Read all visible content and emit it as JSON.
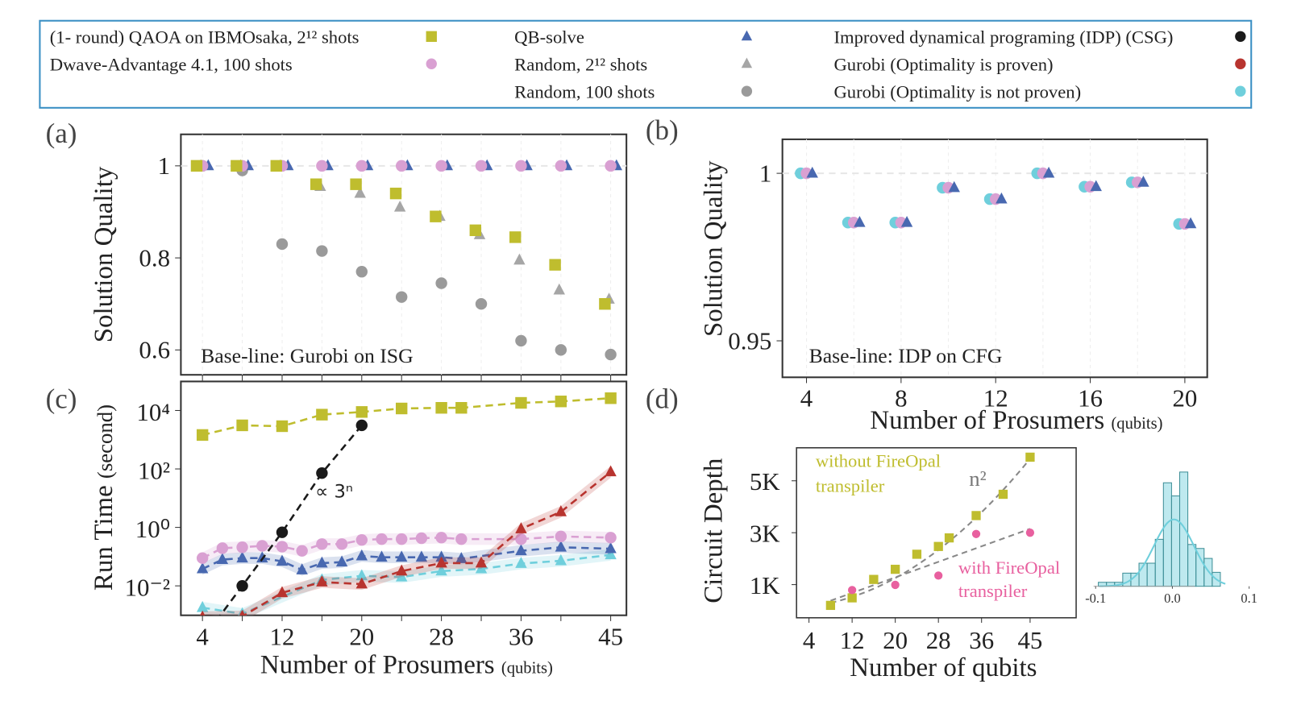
{
  "legend": {
    "border_color": "#3a8fc4",
    "items": [
      {
        "label": "(1- round) QAOA on IBMOsaka, 2¹² shots",
        "marker": "square",
        "color": "#bfbd2e"
      },
      {
        "label": "Dwave-Advantage 4.1,  100 shots",
        "marker": "circle",
        "color": "#d9a0d2"
      },
      {
        "label": "QB-solve",
        "marker": "triangle",
        "color": "#4868b0"
      },
      {
        "label": "Random,  2¹² shots",
        "marker": "triangle",
        "color": "#a6a6a6"
      },
      {
        "label": "Random,  100 shots",
        "marker": "circle",
        "color": "#9a9a9a"
      },
      {
        "label": "Improved dynamical programing (IDP) (CSG)",
        "marker": "circle",
        "color": "#1a1a1a"
      },
      {
        "label": "Gurobi (Optimality is proven)",
        "marker": "circle",
        "color": "#b8342f"
      },
      {
        "label": "Gurobi (Optimality is not proven)",
        "marker": "circle",
        "color": "#6fcfdc"
      }
    ]
  },
  "chart_data": [
    {
      "panel": "(a)",
      "type": "scatter",
      "ylabel": "Solution Quality",
      "annotation": "Base-line: Gurobi on ISG",
      "ylim": [
        0.55,
        1.07
      ],
      "yticks": [
        0.6,
        0.8,
        1
      ],
      "yticklabels": [
        "0.6",
        "0.8",
        "1"
      ],
      "xticks": [
        4,
        8,
        12,
        16,
        20,
        24,
        28,
        32,
        36,
        40,
        45
      ],
      "series": [
        {
          "name": "Random,  100 shots",
          "marker": "circle",
          "color": "#9a9a9a",
          "x": [
            4,
            8,
            12,
            16,
            20,
            24,
            28,
            32,
            36,
            40,
            45
          ],
          "y": [
            1,
            0.99,
            0.83,
            0.815,
            0.77,
            0.715,
            0.745,
            0.7,
            0.62,
            0.6,
            0.59
          ]
        },
        {
          "name": "Random,  2¹² shots",
          "marker": "triangle",
          "color": "#a6a6a6",
          "x": [
            4,
            8,
            12,
            16,
            20,
            24,
            28,
            32,
            36,
            40,
            45
          ],
          "y": [
            1,
            1,
            1,
            0.955,
            0.94,
            0.91,
            0.89,
            0.85,
            0.795,
            0.73,
            0.71
          ]
        },
        {
          "name": "QB-solve",
          "marker": "triangle",
          "color": "#4868b0",
          "x": [
            4,
            8,
            12,
            16,
            20,
            24,
            28,
            32,
            36,
            40,
            45
          ],
          "y": [
            1,
            1,
            1,
            1,
            1,
            1,
            1,
            1,
            1,
            1,
            1
          ]
        },
        {
          "name": "Dwave-Advantage 4.1,  100 shots",
          "marker": "circle",
          "color": "#d9a0d2",
          "x": [
            4,
            8,
            12,
            16,
            20,
            24,
            28,
            32,
            36,
            40,
            45
          ],
          "y": [
            1,
            1,
            1,
            1,
            1,
            1,
            1,
            1,
            1,
            1,
            1
          ]
        },
        {
          "name": "(1- round) QAOA on IBMOsaka, 2¹² shots",
          "marker": "square",
          "color": "#bfbd2e",
          "x": [
            4,
            8,
            12,
            16,
            20,
            24,
            28,
            32,
            36,
            40,
            45
          ],
          "y": [
            1,
            1,
            1,
            0.96,
            0.96,
            0.94,
            0.89,
            0.86,
            0.845,
            0.785,
            0.7
          ]
        }
      ]
    },
    {
      "panel": "(b)",
      "type": "scatter",
      "ylabel": "Solution Quality",
      "xlabel": "Number of Prosumers",
      "xlabel_unit": "(qubits)",
      "annotation": "Base-line: IDP on CFG",
      "ylim": [
        0.939,
        1.01
      ],
      "yticks": [
        0.95,
        1
      ],
      "yticklabels": [
        "0.95",
        "1"
      ],
      "xticks": [
        4,
        8,
        12,
        16,
        20
      ],
      "xticklabels": [
        "4",
        "8",
        "12",
        "16",
        "20"
      ],
      "series": [
        {
          "name": "Gurobi (Optimality is not proven)",
          "marker": "circle",
          "color": "#6fcfdc",
          "x": [
            4,
            6,
            8,
            10,
            12,
            14,
            16,
            18,
            20
          ],
          "y": [
            1.0,
            0.9853,
            0.9853,
            0.9957,
            0.9923,
            1.0,
            0.996,
            0.9973,
            0.9849
          ]
        },
        {
          "name": "Dwave-Advantage 4.1,  100 shots",
          "marker": "circle",
          "color": "#d9a0d2",
          "x": [
            4,
            6,
            8,
            10,
            12,
            14,
            16,
            18,
            20
          ],
          "y": [
            1.0,
            0.9853,
            0.9853,
            0.9957,
            0.9923,
            1.0,
            0.996,
            0.9973,
            0.9849
          ]
        },
        {
          "name": "QB-solve",
          "marker": "triangle",
          "color": "#4868b0",
          "x": [
            4,
            6,
            8,
            10,
            12,
            14,
            16,
            18,
            20
          ],
          "y": [
            1.0,
            0.9853,
            0.9853,
            0.9957,
            0.9923,
            1.0,
            0.996,
            0.9973,
            0.9849
          ]
        }
      ]
    },
    {
      "panel": "(c)",
      "type": "line",
      "yscale": "log",
      "ylabel": "Run Time",
      "ylabel_unit": "(second)",
      "xlabel": "Number of Prosumers",
      "xlabel_unit": "(qubits)",
      "ylim": [
        0.001,
        100000
      ],
      "yticks": [
        0.01,
        1,
        100,
        10000
      ],
      "yticklabels": [
        "10⁻²",
        "10⁰",
        "10²",
        "10⁴"
      ],
      "xticks": [
        4,
        8,
        12,
        16,
        20,
        24,
        28,
        32,
        36,
        40,
        45
      ],
      "xticklabels": [
        "4",
        "12",
        "20",
        "28",
        "36",
        "45"
      ],
      "xticklabel_values": [
        4,
        12,
        20,
        28,
        36,
        45
      ],
      "annotation": "∝ 3ⁿ",
      "series": [
        {
          "name": "(1- round) QAOA on IBMOsaka, 2¹² shots",
          "marker": "square",
          "color": "#bfbd2e",
          "x": [
            4,
            8,
            12,
            16,
            20,
            24,
            28,
            30,
            36,
            40,
            45
          ],
          "y": [
            1450,
            3100,
            2900,
            7200,
            8900,
            11700,
            12300,
            12300,
            18200,
            20400,
            26300
          ]
        },
        {
          "name": "Gurobi (Optimality is not proven)",
          "marker": "triangle",
          "color": "#6fcfdc",
          "x": [
            4,
            8,
            16,
            20,
            24,
            28,
            32,
            36,
            40,
            45
          ],
          "y": [
            0.0018,
            0.0011,
            0.016,
            0.022,
            0.02,
            0.032,
            0.038,
            0.058,
            0.072,
            0.115
          ]
        },
        {
          "name": "QB-solve",
          "marker": "triangle",
          "color": "#4868b0",
          "x": [
            4,
            6,
            8,
            10,
            12,
            14,
            16,
            18,
            20,
            22,
            24,
            26,
            28,
            30,
            36,
            40,
            45
          ],
          "y": [
            0.038,
            0.079,
            0.089,
            0.089,
            0.069,
            0.035,
            0.06,
            0.065,
            0.105,
            0.095,
            0.095,
            0.095,
            0.095,
            0.085,
            0.158,
            0.209,
            0.186
          ]
        },
        {
          "name": "Dwave-Advantage 4.1,  100 shots",
          "marker": "circle",
          "color": "#d9a0d2",
          "x": [
            4,
            6,
            8,
            10,
            12,
            14,
            16,
            18,
            20,
            22,
            24,
            26,
            28,
            30,
            36,
            40,
            45
          ],
          "y": [
            0.089,
            0.195,
            0.209,
            0.234,
            0.219,
            0.158,
            0.269,
            0.269,
            0.372,
            0.398,
            0.398,
            0.427,
            0.447,
            0.398,
            0.398,
            0.49,
            0.447
          ]
        },
        {
          "name": "Gurobi (Optimality is proven)",
          "marker": "triangle",
          "color": "#b8342f",
          "x": [
            4,
            8,
            12,
            16,
            20,
            24,
            28,
            32,
            36,
            40,
            45
          ],
          "y": [
            0.00085,
            0.0009,
            0.0058,
            0.0135,
            0.0115,
            0.032,
            0.06,
            0.06,
            0.89,
            3.4,
            79
          ]
        },
        {
          "name": "Improved dynamical programing (IDP) (CSG)",
          "marker": "circle",
          "color": "#1a1a1a",
          "x": [
            8,
            12,
            16,
            20
          ],
          "y": [
            0.01,
            0.68,
            72,
            3100
          ]
        }
      ]
    },
    {
      "panel": "(d)",
      "type": "scatter",
      "ylabel": "Circuit Depth",
      "xlabel": "Number of qubits",
      "ylim": [
        -280,
        6280
      ],
      "yticks": [
        1000,
        3000,
        5000
      ],
      "yticklabels": [
        "1K",
        "3K",
        "5K"
      ],
      "xticks": [
        4,
        12,
        20,
        28,
        36,
        45
      ],
      "xticklabels": [
        "4",
        "12",
        "20",
        "28",
        "36",
        "45"
      ],
      "fit_label": "n²",
      "series": [
        {
          "name": "without FireOpal transpiler",
          "label_lines": [
            "without FireOpal",
            "transpiler"
          ],
          "marker": "square",
          "color": "#bfbd2e",
          "x": [
            8,
            12,
            16,
            20,
            24,
            28,
            30,
            35,
            40,
            45
          ],
          "y": [
            200,
            490,
            1200,
            1590,
            2170,
            2470,
            2800,
            3660,
            4480,
            5910
          ]
        },
        {
          "name": "with FireOpal transpiler",
          "label_lines": [
            "with FireOpal",
            "transpiler"
          ],
          "marker": "circle",
          "color": "#e8609f",
          "x": [
            12,
            20,
            28,
            35,
            45
          ],
          "y": [
            790,
            990,
            1350,
            2950,
            3000
          ]
        }
      ]
    },
    {
      "panel": "(d) inset",
      "type": "bar",
      "subtype": "histogram",
      "color": "#6fcfdc",
      "bin_start": -0.0965,
      "bin_width": 0.0106,
      "counts": [
        1,
        1,
        1,
        3.3,
        3.3,
        5.8,
        5.8,
        11.8,
        26,
        22.7,
        28.7,
        10.5,
        9.5,
        7,
        3.5
      ],
      "fit": {
        "type": "normal",
        "mean": 0.002,
        "std": 0.026,
        "peak": 16.8
      },
      "xticks": [
        -0.1,
        0.0,
        0.1
      ],
      "xticklabels": [
        "-0.1",
        "0.0",
        "0.1"
      ]
    }
  ]
}
